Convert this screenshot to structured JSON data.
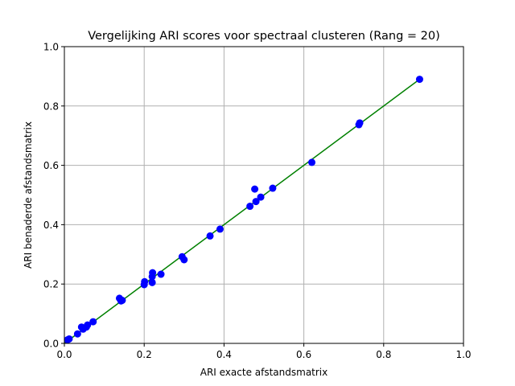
{
  "chart_data": {
    "type": "scatter",
    "title": "Vergelijking ARI scores voor spectraal clusteren (Rang = 20)",
    "xlabel": "ARI exacte afstandsmatrix",
    "ylabel": "ARI benaderde afstandsmatrix",
    "xlim": [
      0.0,
      1.0
    ],
    "ylim": [
      0.0,
      1.0
    ],
    "xticks": [
      "0.0",
      "0.2",
      "0.4",
      "0.6",
      "0.8",
      "1.0"
    ],
    "yticks": [
      "0.0",
      "0.2",
      "0.4",
      "0.6",
      "0.8",
      "1.0"
    ],
    "grid": true,
    "colors": {
      "points": "#0000ff",
      "line": "#008000",
      "grid": "#b0b0b0"
    },
    "line": {
      "x": [
        0.0,
        0.89
      ],
      "y": [
        0.0,
        0.89
      ]
    },
    "points": {
      "x": [
        0.008,
        0.012,
        0.033,
        0.043,
        0.047,
        0.055,
        0.058,
        0.072,
        0.138,
        0.142,
        0.145,
        0.2,
        0.201,
        0.22,
        0.22,
        0.221,
        0.242,
        0.295,
        0.3,
        0.365,
        0.39,
        0.465,
        0.477,
        0.48,
        0.492,
        0.522,
        0.62,
        0.738,
        0.74,
        0.89
      ],
      "y": [
        0.012,
        0.015,
        0.032,
        0.055,
        0.048,
        0.055,
        0.062,
        0.073,
        0.152,
        0.143,
        0.145,
        0.198,
        0.208,
        0.205,
        0.225,
        0.238,
        0.233,
        0.292,
        0.282,
        0.362,
        0.385,
        0.462,
        0.52,
        0.478,
        0.493,
        0.523,
        0.61,
        0.737,
        0.743,
        0.89
      ]
    }
  }
}
